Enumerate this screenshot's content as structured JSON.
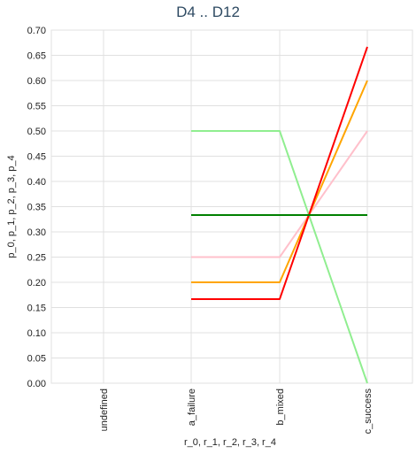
{
  "chart_data": {
    "type": "line",
    "title": "D4 .. D12",
    "xlabel": "r_0, r_1, r_2, r_3, r_4",
    "ylabel": "p_0, p_1, p_2, p_3, p_4",
    "categories": [
      "undefined",
      "a_failure",
      "b_mixed",
      "c_success"
    ],
    "ylim": [
      0,
      0.7
    ],
    "yticks": [
      "0.00",
      "0.05",
      "0.10",
      "0.15",
      "0.20",
      "0.25",
      "0.30",
      "0.35",
      "0.40",
      "0.45",
      "0.50",
      "0.55",
      "0.60",
      "0.65",
      "0.70"
    ],
    "grid": true,
    "series": [
      {
        "color": "#90ee90",
        "values": [
          null,
          0.5,
          0.5,
          0.0
        ]
      },
      {
        "color": "#ffc0cb",
        "values": [
          null,
          0.25,
          0.25,
          0.5
        ]
      },
      {
        "color": "#ffa500",
        "values": [
          null,
          0.2,
          0.2,
          0.6
        ]
      },
      {
        "color": "#ff0000",
        "values": [
          null,
          0.1667,
          0.1667,
          0.6667
        ]
      },
      {
        "color": "#008000",
        "values": [
          null,
          0.3333,
          0.3333,
          0.3333
        ]
      }
    ]
  }
}
